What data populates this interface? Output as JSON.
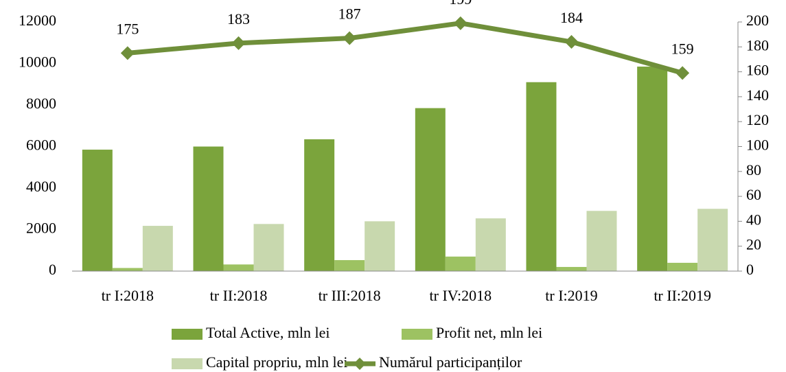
{
  "chart_data": {
    "type": "bar_line",
    "categories": [
      "tr I:2018",
      "tr II:2018",
      "tr III:2018",
      "tr IV:2018",
      "tr I:2019",
      "tr II:2019"
    ],
    "series": [
      {
        "name": "Total Active, mln lei",
        "color": "#7ba43c",
        "type": "bar",
        "values": [
          5850,
          6000,
          6350,
          7850,
          9100,
          9850
        ]
      },
      {
        "name": "Profit net, mln lei",
        "color": "#9dc262",
        "type": "bar",
        "values": [
          150,
          320,
          530,
          700,
          200,
          400
        ]
      },
      {
        "name": "Capital propriu, mln lei",
        "color": "#c8d8ae",
        "type": "bar",
        "values": [
          2180,
          2270,
          2400,
          2540,
          2900,
          3000
        ]
      },
      {
        "name": "Numărul participanților",
        "color": "#6f8f3a",
        "type": "line",
        "axis": "y2",
        "values": [
          175,
          183,
          187,
          199,
          184,
          159
        ]
      }
    ],
    "ylim": [
      0,
      12000
    ],
    "yticks": [
      0,
      2000,
      4000,
      6000,
      8000,
      10000,
      12000
    ],
    "y2lim": [
      0,
      200
    ],
    "y2ticks": [
      0,
      20,
      40,
      60,
      80,
      100,
      120,
      140,
      160,
      180,
      200
    ]
  }
}
